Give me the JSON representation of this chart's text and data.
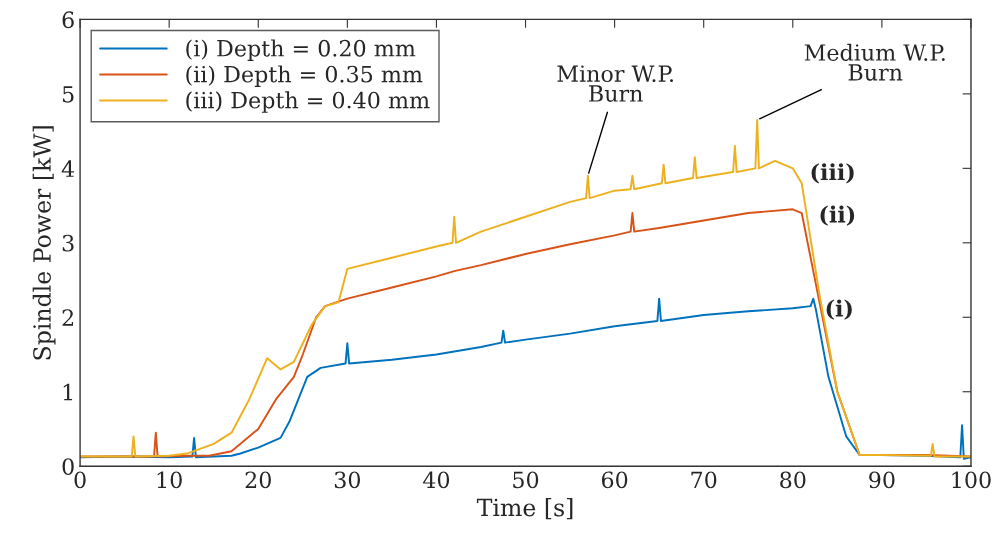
{
  "chart_data": {
    "type": "line",
    "xlabel": "Time [s]",
    "ylabel": "Spindle Power [kW]",
    "xlim": [
      0,
      100
    ],
    "xticks": [
      0,
      10,
      20,
      30,
      40,
      50,
      60,
      70,
      80,
      90,
      100
    ],
    "ylim": [
      0,
      6
    ],
    "yticks": [
      0,
      1,
      2,
      3,
      4,
      5,
      6
    ],
    "grid": false,
    "legend": "top left",
    "line_style": "solid",
    "marker": "none",
    "series": [
      {
        "name": "(i) Depth = 0.20 mm",
        "color": "#0072bd",
        "x": [
          0,
          5,
          10,
          12.6,
          12.8,
          13,
          15,
          17,
          18,
          20,
          22.5,
          23.5,
          25.5,
          27,
          29.8,
          30,
          30.2,
          35,
          40,
          45,
          47.3,
          47.5,
          47.7,
          50,
          55,
          60,
          64.8,
          65,
          65.2,
          70,
          75,
          80,
          82,
          82.3,
          82.6,
          84,
          86,
          87.5,
          90,
          95,
          98.8,
          99,
          99.2,
          100
        ],
        "values": [
          0.12,
          0.13,
          0.12,
          0.13,
          0.38,
          0.12,
          0.13,
          0.14,
          0.17,
          0.25,
          0.38,
          0.6,
          1.2,
          1.32,
          1.38,
          1.65,
          1.38,
          1.43,
          1.5,
          1.6,
          1.66,
          1.82,
          1.66,
          1.7,
          1.78,
          1.88,
          1.95,
          2.25,
          1.95,
          2.03,
          2.08,
          2.12,
          2.15,
          2.25,
          2.1,
          1.2,
          0.4,
          0.15,
          0.15,
          0.14,
          0.12,
          0.55,
          0.1,
          0.12
        ]
      },
      {
        "name": "(ii) Depth = 0.35 mm",
        "color": "#d95319",
        "x": [
          0,
          5,
          8.3,
          8.5,
          8.7,
          12,
          14.5,
          17,
          20,
          22,
          24,
          25,
          26.5,
          27.5,
          30,
          35,
          40,
          42,
          45,
          50,
          55,
          60,
          61.8,
          62,
          62.2,
          65,
          70,
          75,
          80,
          81,
          83,
          85,
          87.5,
          90,
          95,
          100
        ],
        "values": [
          0.13,
          0.13,
          0.13,
          0.45,
          0.13,
          0.14,
          0.14,
          0.2,
          0.5,
          0.9,
          1.2,
          1.5,
          2.0,
          2.15,
          2.25,
          2.4,
          2.55,
          2.62,
          2.7,
          2.85,
          2.98,
          3.1,
          3.15,
          3.4,
          3.15,
          3.2,
          3.3,
          3.4,
          3.45,
          3.4,
          2.2,
          1.0,
          0.15,
          0.15,
          0.15,
          0.13
        ]
      },
      {
        "name": "(iii) Depth = 0.40 mm",
        "color": "#edb120",
        "x": [
          0,
          5.8,
          6,
          6.2,
          10,
          12,
          15,
          17,
          19,
          21,
          22.5,
          24,
          26,
          27.5,
          29,
          30,
          35,
          40,
          41.8,
          42,
          42.2,
          45,
          50,
          55,
          56.8,
          57,
          57.2,
          60,
          61.8,
          62,
          62.2,
          65.3,
          65.5,
          65.7,
          68.8,
          69,
          69.2,
          73.3,
          73.5,
          73.7,
          75.8,
          76,
          76.2,
          78,
          80,
          81,
          83,
          85,
          87.5,
          90,
          95.5,
          95.7,
          95.9,
          100
        ],
        "values": [
          0.13,
          0.13,
          0.4,
          0.13,
          0.14,
          0.17,
          0.3,
          0.45,
          0.9,
          1.45,
          1.3,
          1.4,
          1.9,
          2.15,
          2.2,
          2.65,
          2.8,
          2.95,
          3.0,
          3.35,
          3.0,
          3.15,
          3.35,
          3.55,
          3.6,
          3.9,
          3.6,
          3.7,
          3.72,
          3.9,
          3.72,
          3.8,
          4.05,
          3.8,
          3.87,
          4.15,
          3.87,
          3.95,
          4.3,
          3.95,
          4.0,
          4.65,
          4.0,
          4.1,
          4.0,
          3.8,
          2.3,
          1.0,
          0.15,
          0.15,
          0.14,
          0.3,
          0.13,
          0.13
        ]
      }
    ],
    "annotations": [
      {
        "text": "Minor W.P.\nBurn",
        "x": 57,
        "y": 3.9
      },
      {
        "text": "Medium W.P.\nBurn",
        "x": 76,
        "y": 4.65
      },
      {
        "text": "(iii)",
        "x": 80,
        "y": 4.0
      },
      {
        "text": "(ii)",
        "x": 81,
        "y": 3.45
      },
      {
        "text": "(i)",
        "x": 82,
        "y": 2.15
      }
    ]
  }
}
